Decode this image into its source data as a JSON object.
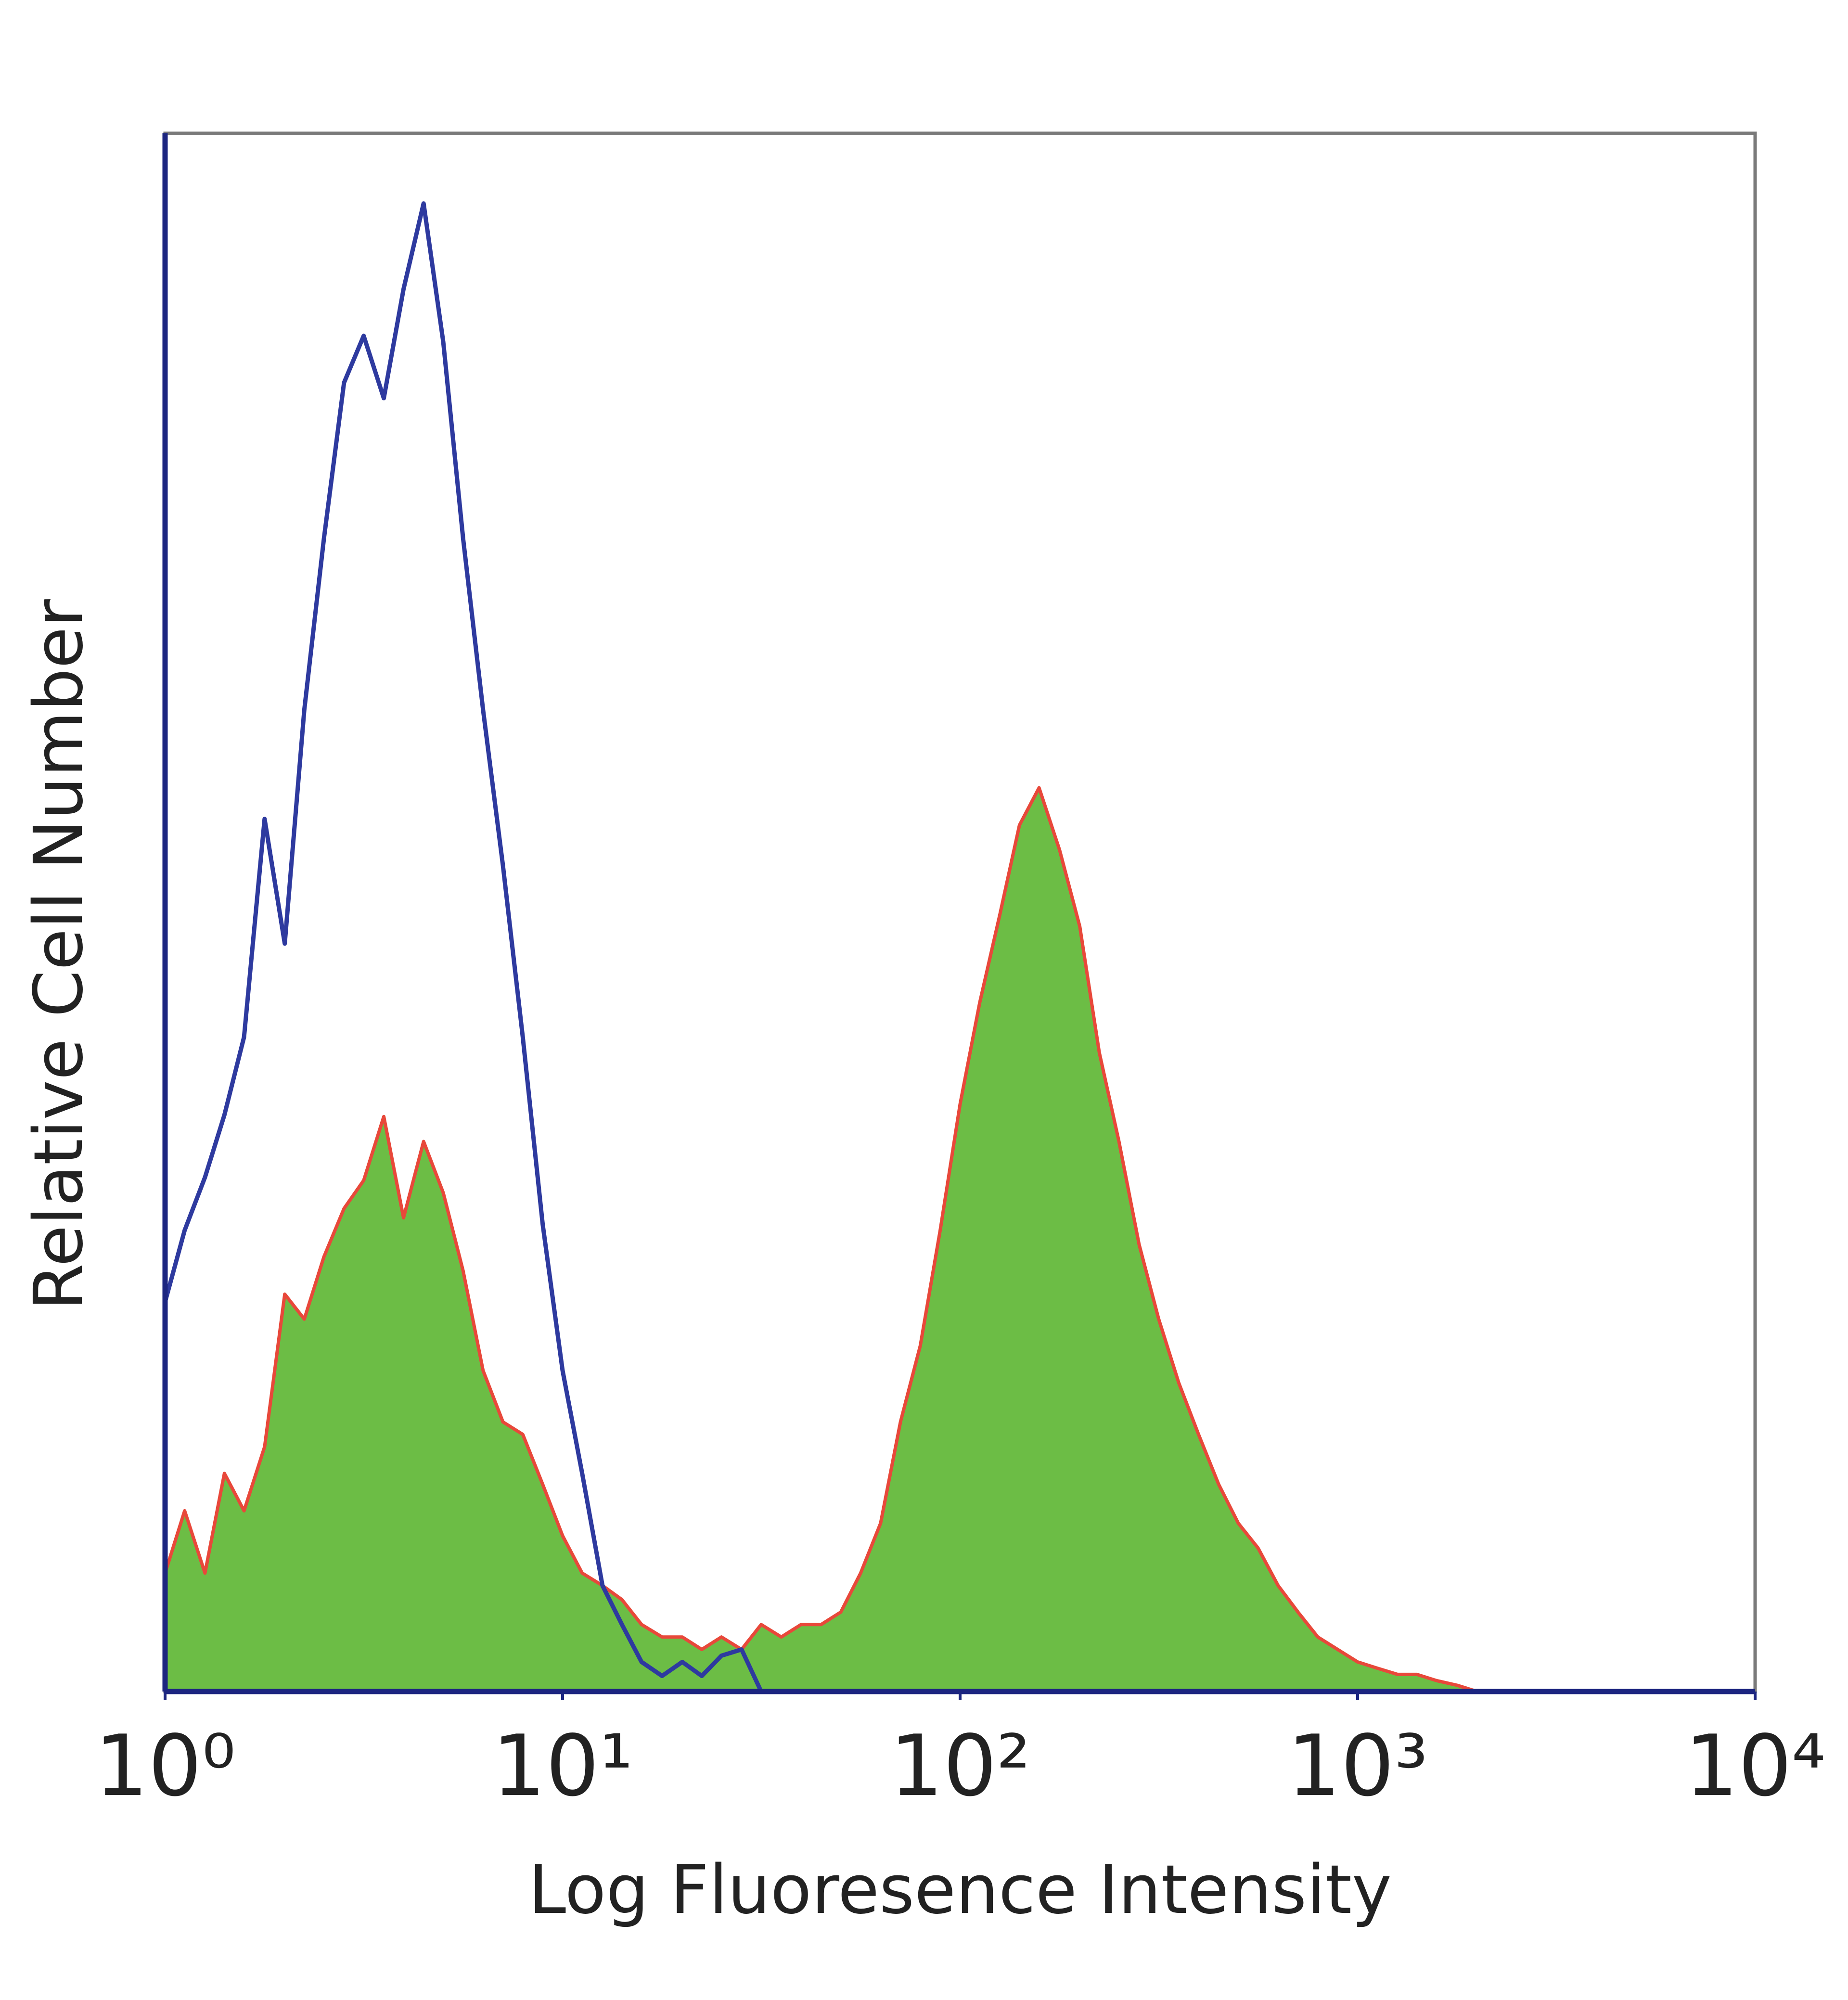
{
  "chart_data": {
    "type": "histogram-overlay",
    "x_label": "Log Fluoresence Intensity",
    "y_label": "Relative Cell Number",
    "x_scale": "log",
    "xlim": [
      1,
      10000
    ],
    "xticks": [
      {
        "value": 1,
        "label": "10⁰"
      },
      {
        "value": 10,
        "label": "10¹"
      },
      {
        "value": 100,
        "label": "10²"
      },
      {
        "value": 1000,
        "label": "10³"
      },
      {
        "value": 10000,
        "label": "10⁴"
      }
    ],
    "ylim": [
      0,
      100
    ],
    "grid": false,
    "x": [
      1,
      1.12,
      1.26,
      1.41,
      1.58,
      1.78,
      2,
      2.24,
      2.51,
      2.82,
      3.16,
      3.55,
      3.98,
      4.47,
      5.01,
      5.62,
      6.31,
      7.08,
      7.94,
      8.91,
      10,
      11.2,
      12.6,
      14.1,
      15.8,
      17.8,
      20,
      22.4,
      25.1,
      28.2,
      31.6,
      35.5,
      39.8,
      44.7,
      50.1,
      56.2,
      63.1,
      70.8,
      79.4,
      89.1,
      100,
      112,
      126,
      141,
      158,
      178,
      200,
      224,
      251,
      282,
      316,
      355,
      398,
      447,
      501,
      562,
      631,
      708,
      794,
      891,
      1000,
      1120,
      1260,
      1410,
      1580,
      1780,
      2000,
      2240,
      2510,
      2820,
      3160
    ],
    "series": [
      {
        "color": "#6cbd45",
        "line_color": "#e8483a",
        "fill": true,
        "values": [
          7.6,
          11.6,
          7.6,
          14,
          11.6,
          15.7,
          25.5,
          23.9,
          27.9,
          31,
          32.8,
          36.9,
          30.4,
          35.3,
          32,
          27,
          20.6,
          17.3,
          16.5,
          13.3,
          10,
          7.6,
          6.8,
          5.9,
          4.3,
          3.5,
          3.5,
          2.7,
          3.5,
          2.7,
          4.3,
          3.5,
          4.3,
          4.3,
          5.1,
          7.6,
          10.8,
          17.3,
          22.2,
          29.6,
          37.7,
          44.2,
          49.9,
          55.6,
          58,
          54,
          49.1,
          41,
          35.3,
          28.7,
          23.9,
          19.8,
          16.5,
          13.3,
          10.8,
          9.2,
          6.8,
          5.1,
          3.5,
          2.7,
          1.9,
          1.5,
          1.1,
          1.1,
          0.7,
          0.4,
          0,
          0,
          0,
          0,
          0
        ]
      },
      {
        "color": "#2e3a9f",
        "fill": false,
        "values": [
          25,
          29.6,
          33,
          37,
          42,
          56,
          48,
          63,
          74,
          84,
          87,
          83,
          90,
          95.5,
          86.6,
          74,
          63,
          53,
          42,
          30,
          20.6,
          14,
          6.8,
          4.3,
          1.9,
          1,
          1.9,
          1,
          2.3,
          2.7,
          0,
          0,
          0,
          0,
          0,
          0,
          0,
          0,
          0,
          0,
          0,
          0,
          0,
          0,
          0,
          0,
          0,
          0,
          0,
          0,
          0,
          0,
          0,
          0,
          0,
          0,
          0,
          0,
          0,
          0,
          0,
          0,
          0,
          0,
          0,
          0,
          0,
          0,
          0,
          0,
          0
        ]
      }
    ]
  }
}
